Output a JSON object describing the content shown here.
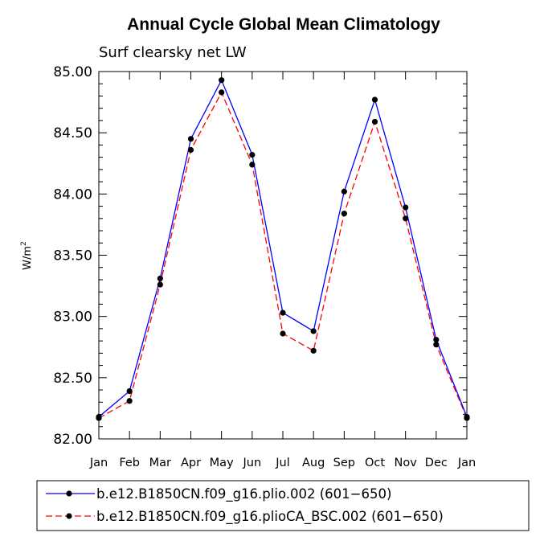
{
  "chart_data": {
    "type": "line",
    "title": "Annual Cycle Global Mean Climatology",
    "subtitle": "Surf clearsky net LW",
    "xlabel": "",
    "ylabel_base": "W/m",
    "ylabel_exp": "2",
    "categories": [
      "Jan",
      "Feb",
      "Mar",
      "Apr",
      "May",
      "Jun",
      "Jul",
      "Aug",
      "Sep",
      "Oct",
      "Nov",
      "Dec",
      "Jan"
    ],
    "ylim": [
      82.0,
      85.0
    ],
    "yticks": [
      "82.00",
      "82.50",
      "83.00",
      "83.50",
      "84.00",
      "84.50",
      "85.00"
    ],
    "series": [
      {
        "name": "b.e12.B1850CN.f09_g16.plio.002 (601−650)",
        "color": "#0000ff",
        "dash": "solid",
        "values": [
          82.18,
          82.39,
          83.31,
          84.45,
          84.93,
          84.32,
          83.03,
          82.88,
          84.02,
          84.77,
          83.89,
          82.81,
          82.18
        ]
      },
      {
        "name": "b.e12.B1850CN.f09_g16.plioCA_BSC.002 (601−650)",
        "color": "#ff0000",
        "dash": "dashed",
        "values": [
          82.17,
          82.31,
          83.26,
          84.36,
          84.83,
          84.24,
          82.86,
          82.72,
          83.84,
          84.59,
          83.8,
          82.77,
          82.17
        ]
      }
    ],
    "marker_color": "#000000",
    "legend_position": "bottom"
  }
}
